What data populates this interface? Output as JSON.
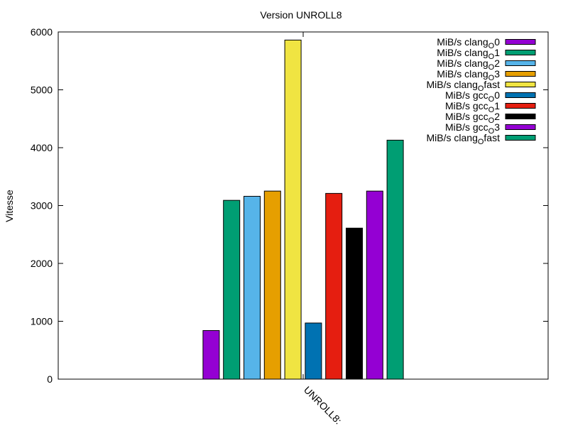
{
  "chart_data": {
    "type": "bar",
    "title": "Version UNROLL8",
    "ylabel": "Vitesse",
    "xlabel": "",
    "categories": [
      "UNROLL8:"
    ],
    "ylim": [
      0,
      6000
    ],
    "yticks": [
      0,
      1000,
      2000,
      3000,
      4000,
      5000,
      6000
    ],
    "grid": false,
    "legend_position": "top-right",
    "series": [
      {
        "base": "MiB/s clang",
        "sub": "O",
        "suffix": "0",
        "value": 840,
        "color": "#9400d3"
      },
      {
        "base": "MiB/s clang",
        "sub": "O",
        "suffix": "1",
        "value": 3090,
        "color": "#009e73"
      },
      {
        "base": "MiB/s clang",
        "sub": "O",
        "suffix": "2",
        "value": 3160,
        "color": "#56b4e9"
      },
      {
        "base": "MiB/s clang",
        "sub": "O",
        "suffix": "3",
        "value": 3250,
        "color": "#e69f00"
      },
      {
        "base": "MiB/s clang",
        "sub": "O",
        "suffix": "fast",
        "value": 5860,
        "color": "#f0e442"
      },
      {
        "base": "MiB/s gcc",
        "sub": "O",
        "suffix": "0",
        "value": 970,
        "color": "#0072b2"
      },
      {
        "base": "MiB/s gcc",
        "sub": "O",
        "suffix": "1",
        "value": 3210,
        "color": "#e51e10"
      },
      {
        "base": "MiB/s gcc",
        "sub": "O",
        "suffix": "2",
        "value": 2610,
        "color": "#000000"
      },
      {
        "base": "MiB/s gcc",
        "sub": "O",
        "suffix": "3",
        "value": 3250,
        "color": "#9400d3"
      },
      {
        "base": "MiB/s clang",
        "sub": "O",
        "suffix": "fast",
        "value": 4130,
        "color": "#009e73"
      }
    ]
  }
}
